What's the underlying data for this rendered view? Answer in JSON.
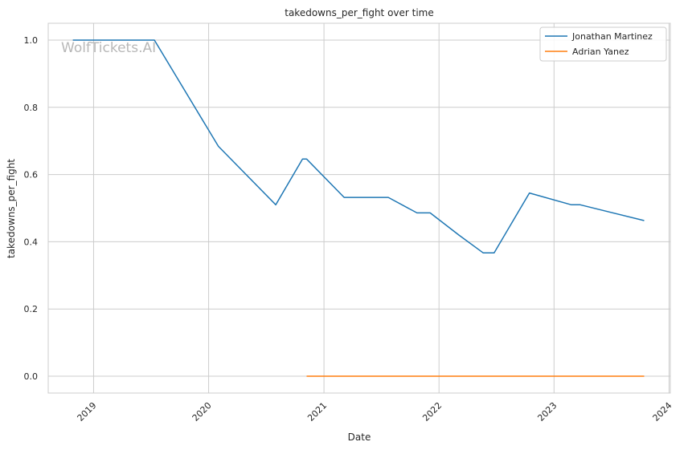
{
  "watermark": "WolfTickets.AI",
  "chart_data": {
    "type": "line",
    "title": "takedowns_per_fight over time",
    "xlabel": "Date",
    "ylabel": "takedowns_per_fight",
    "x_ticks": [
      "2019",
      "2020",
      "2021",
      "2022",
      "2023",
      "2024"
    ],
    "y_ticks": [
      "0.0",
      "0.2",
      "0.4",
      "0.6",
      "0.8",
      "1.0"
    ],
    "xlim": [
      "2018-08-10",
      "2024-01-05"
    ],
    "ylim": [
      -0.05,
      1.05
    ],
    "grid": true,
    "legend_position": "top-right",
    "series": [
      {
        "name": "Jonathan Martinez",
        "color": "#1f77b4",
        "points": [
          [
            "2018-10-27",
            1.0
          ],
          [
            "2019-07-13",
            1.0
          ],
          [
            "2020-02-01",
            0.684
          ],
          [
            "2020-08-01",
            0.51
          ],
          [
            "2020-10-25",
            0.646
          ],
          [
            "2020-11-07",
            0.646
          ],
          [
            "2021-03-06",
            0.532
          ],
          [
            "2021-07-24",
            0.532
          ],
          [
            "2021-10-23",
            0.486
          ],
          [
            "2021-12-04",
            0.486
          ],
          [
            "2022-03-05",
            0.42
          ],
          [
            "2022-05-21",
            0.367
          ],
          [
            "2022-06-25",
            0.367
          ],
          [
            "2022-10-15",
            0.545
          ],
          [
            "2023-02-25",
            0.51
          ],
          [
            "2023-03-25",
            0.51
          ],
          [
            "2023-10-14",
            0.463
          ]
        ]
      },
      {
        "name": "Adrian Yanez",
        "color": "#ff7f0e",
        "points": [
          [
            "2020-11-07",
            0.0
          ],
          [
            "2023-10-14",
            0.0
          ]
        ]
      }
    ]
  }
}
